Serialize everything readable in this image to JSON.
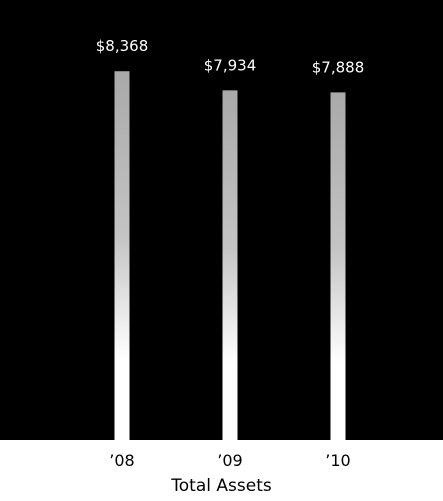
{
  "chart_data": {
    "type": "bar",
    "title": "Total Assets",
    "categories": [
      "’08",
      "’09",
      "’10"
    ],
    "values": [
      8368,
      7934,
      7888
    ],
    "value_labels": [
      "$8,368",
      "$7,934",
      "$7,888"
    ],
    "ylim": [
      0,
      8600
    ],
    "grid": false,
    "legend": "none",
    "colors": {
      "plot_background": "#000000",
      "bar_top": "#a9a9a9",
      "bar_bottom": "#ffffff",
      "value_label": "#ffffff",
      "tick_label": "#000000"
    }
  }
}
